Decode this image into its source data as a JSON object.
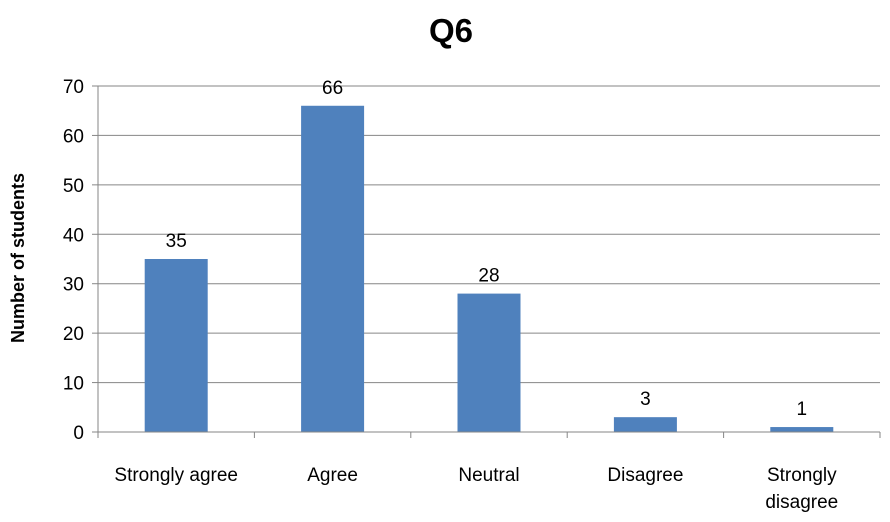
{
  "chart_data": {
    "type": "bar",
    "title": "Q6",
    "xlabel": "",
    "ylabel": "Number of students",
    "categories": [
      "Strongly agree",
      "Agree",
      "Neutral",
      "Disagree",
      "Strongly disagree"
    ],
    "values": [
      35,
      66,
      28,
      3,
      1
    ],
    "ylim": [
      0,
      70
    ],
    "yticks": [
      0,
      10,
      20,
      30,
      40,
      50,
      60,
      70
    ],
    "grid": true,
    "legend": "none",
    "bar_color": "#4F81BD"
  }
}
